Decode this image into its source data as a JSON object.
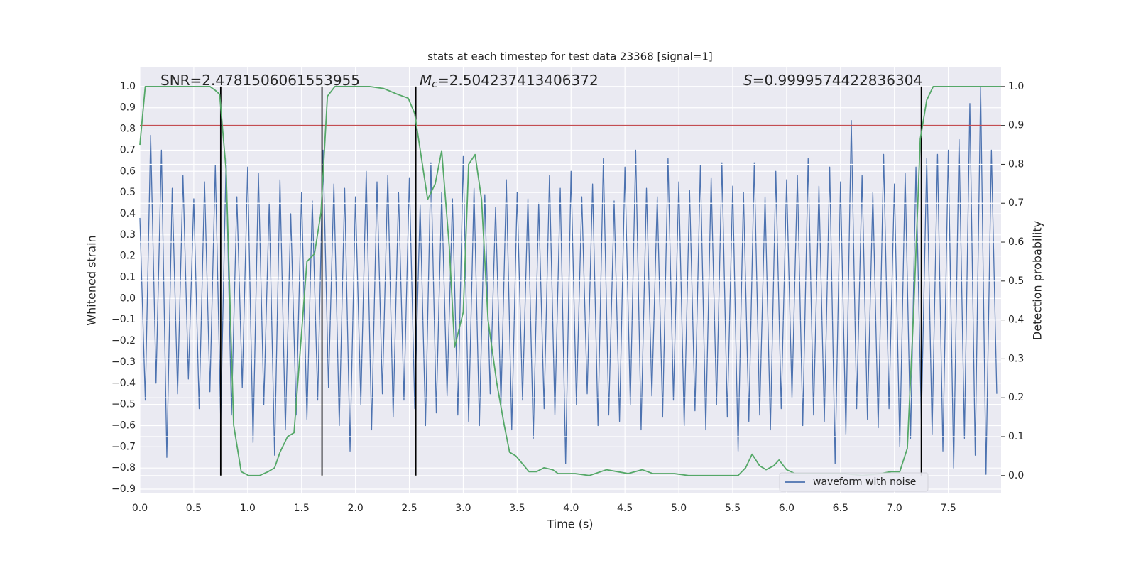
{
  "chart_data": {
    "type": "line",
    "title": "stats at each timestep for test data 23368 [signal=1]",
    "xlabel": "Time (s)",
    "ylabel": "Whitened strain",
    "y2label": "Detection probability",
    "xlim": [
      0,
      7.99
    ],
    "ylim": [
      -0.92,
      1.09
    ],
    "y2lim": [
      -0.046,
      1.049
    ],
    "xticks": [
      {
        "value": 0,
        "label": "0.0"
      },
      0.5,
      {
        "value": 1,
        "label": "1.0"
      },
      1.5,
      {
        "value": 2,
        "label": "2.0"
      },
      2.5,
      {
        "value": 3,
        "label": "3.0"
      },
      3.5,
      {
        "value": 4,
        "label": "4.0"
      },
      4.5,
      {
        "value": 5,
        "label": "5.0"
      },
      5.5,
      {
        "value": 6,
        "label": "6.0"
      },
      6.5,
      {
        "value": 7,
        "label": "7.0"
      },
      7.5
    ],
    "yticks": [
      {
        "value": -0.9,
        "label": "−0.9"
      },
      {
        "value": -0.8,
        "label": "−0.8"
      },
      {
        "value": -0.7,
        "label": "−0.7"
      },
      {
        "value": -0.6,
        "label": "−0.6"
      },
      {
        "value": -0.5,
        "label": "−0.5"
      },
      {
        "value": -0.4,
        "label": "−0.4"
      },
      {
        "value": -0.3,
        "label": "−0.3"
      },
      {
        "value": -0.2,
        "label": "−0.2"
      },
      {
        "value": -0.1,
        "label": "−0.1"
      },
      {
        "value": 0,
        "label": "0.0"
      },
      0.1,
      0.2,
      0.3,
      0.4,
      0.5,
      0.6,
      0.7,
      0.8,
      0.9,
      {
        "value": 1,
        "label": "1.0"
      }
    ],
    "y2ticks": [
      {
        "value": 0,
        "label": "0.0"
      },
      0.1,
      0.2,
      0.3,
      0.4,
      0.5,
      0.6,
      0.7,
      0.8,
      0.9,
      {
        "value": 1,
        "label": "1.0"
      }
    ],
    "grid": true,
    "legend": "lower right",
    "threshold": {
      "value": 0.9,
      "axis": "y2",
      "color": "#c44e52"
    },
    "vlines": {
      "values": [
        0.75,
        1.69,
        2.56,
        7.25
      ],
      "from": 0,
      "to": 1,
      "axis": "y2",
      "color": "#000000"
    },
    "annotations": [
      {
        "text": "SNR=2.4781506061553955"
      },
      {
        "symbol": "M",
        "subscript": "c",
        "text": "=2.504237413406372"
      },
      {
        "symbol": "S",
        "text": "=0.9999574422836304"
      }
    ],
    "series": [
      {
        "name": "waveform with noise",
        "color": "#4c72b0",
        "x": [
          0,
          0.05,
          0.1,
          0.15,
          0.2,
          0.25,
          0.3,
          0.35,
          0.4,
          0.45,
          0.5,
          0.55,
          0.6,
          0.65,
          0.7,
          0.75,
          0.8,
          0.85,
          0.9,
          0.95,
          1,
          1.05,
          1.1,
          1.15,
          1.2,
          1.25,
          1.3,
          1.35,
          1.4,
          1.45,
          1.5,
          1.55,
          1.6,
          1.65,
          1.7,
          1.75,
          1.8,
          1.85,
          1.9,
          1.95,
          2,
          2.05,
          2.1,
          2.15,
          2.2,
          2.25,
          2.3,
          2.35,
          2.4,
          2.45,
          2.5,
          2.55,
          2.6,
          2.65,
          2.7,
          2.75,
          2.8,
          2.85,
          2.9,
          2.95,
          3,
          3.05,
          3.1,
          3.15,
          3.2,
          3.25,
          3.3,
          3.35,
          3.4,
          3.45,
          3.5,
          3.55,
          3.6,
          3.65,
          3.7,
          3.75,
          3.8,
          3.85,
          3.9,
          3.95,
          4,
          4.05,
          4.1,
          4.15,
          4.2,
          4.25,
          4.3,
          4.35,
          4.4,
          4.45,
          4.5,
          4.55,
          4.6,
          4.65,
          4.7,
          4.75,
          4.8,
          4.85,
          4.9,
          4.95,
          5,
          5.05,
          5.1,
          5.15,
          5.2,
          5.25,
          5.3,
          5.35,
          5.4,
          5.45,
          5.5,
          5.55,
          5.6,
          5.65,
          5.7,
          5.75,
          5.8,
          5.85,
          5.9,
          5.95,
          6,
          6.05,
          6.1,
          6.15,
          6.2,
          6.25,
          6.3,
          6.35,
          6.4,
          6.45,
          6.5,
          6.55,
          6.6,
          6.65,
          6.7,
          6.75,
          6.8,
          6.85,
          6.9,
          6.95,
          7,
          7.05,
          7.1,
          7.15,
          7.2,
          7.25,
          7.3,
          7.35,
          7.4,
          7.45,
          7.5,
          7.55,
          7.6,
          7.65,
          7.7,
          7.75,
          7.8,
          7.85,
          7.9,
          7.95
        ],
        "values": [
          0.38,
          -0.48,
          0.77,
          -0.4,
          0.7,
          -0.75,
          0.52,
          -0.45,
          0.58,
          -0.38,
          0.47,
          -0.52,
          0.55,
          -0.44,
          0.63,
          -0.58,
          0.66,
          -0.55,
          0.48,
          -0.42,
          0.62,
          -0.68,
          0.59,
          -0.5,
          0.45,
          -0.74,
          0.56,
          -0.62,
          0.4,
          -0.55,
          0.5,
          -0.57,
          0.46,
          -0.48,
          0.7,
          -0.42,
          0.54,
          -0.6,
          0.52,
          -0.72,
          0.48,
          -0.5,
          0.6,
          -0.62,
          0.55,
          -0.45,
          0.58,
          -0.56,
          0.5,
          -0.48,
          0.57,
          -0.52,
          0.44,
          -0.6,
          0.64,
          -0.54,
          0.5,
          -0.46,
          0.47,
          -0.55,
          0.67,
          -0.58,
          0.52,
          -0.6,
          0.49,
          -0.45,
          0.43,
          -0.5,
          0.56,
          -0.62,
          0.5,
          -0.48,
          0.47,
          -0.66,
          0.45,
          -0.52,
          0.58,
          -0.55,
          0.52,
          -0.78,
          0.6,
          -0.5,
          0.48,
          -0.45,
          0.54,
          -0.6,
          0.66,
          -0.55,
          0.46,
          -0.58,
          0.62,
          -0.5,
          0.7,
          -0.62,
          0.52,
          -0.46,
          0.48,
          -0.56,
          0.66,
          -0.48,
          0.55,
          -0.6,
          0.51,
          -0.53,
          0.63,
          -0.62,
          0.57,
          -0.5,
          0.64,
          -0.56,
          0.53,
          -0.72,
          0.5,
          -0.58,
          0.64,
          -0.55,
          0.48,
          -0.62,
          0.6,
          -0.52,
          0.56,
          -0.47,
          0.58,
          -0.6,
          0.66,
          -0.55,
          0.53,
          -0.58,
          0.62,
          -0.78,
          0.55,
          -0.64,
          0.84,
          -0.52,
          0.58,
          -0.57,
          0.5,
          -0.61,
          0.68,
          -0.52,
          0.54,
          -0.7,
          0.59,
          -0.66,
          0.62,
          -0.58,
          0.66,
          -0.64,
          0.68,
          -0.72,
          0.7,
          -0.8,
          0.75,
          -0.66,
          0.92,
          -0.74,
          1.0,
          -0.83,
          0.7,
          -0.45
        ]
      },
      {
        "color": "#55a868",
        "axis": "y2",
        "x": [
          0,
          0.05,
          0.12,
          0.65,
          0.7,
          0.74,
          0.8,
          0.87,
          0.94,
          1.01,
          1.11,
          1.19,
          1.25,
          1.3,
          1.37,
          1.43,
          1.55,
          1.62,
          1.68,
          1.74,
          1.81,
          2.13,
          2.26,
          2.39,
          2.49,
          2.55,
          2.61,
          2.67,
          2.74,
          2.8,
          2.87,
          2.92,
          3.0,
          3.05,
          3.11,
          3.17,
          3.23,
          3.31,
          3.38,
          3.43,
          3.49,
          3.61,
          3.68,
          3.75,
          3.83,
          3.88,
          4.04,
          4.17,
          4.33,
          4.43,
          4.53,
          4.66,
          4.76,
          4.96,
          5.09,
          5.55,
          5.62,
          5.68,
          5.75,
          5.81,
          5.88,
          5.93,
          6.0,
          6.08,
          6.54,
          6.7,
          6.87,
          6.97,
          7.05,
          7.12,
          7.18,
          7.24,
          7.3,
          7.36,
          7.99
        ],
        "values": [
          0.85,
          1.0,
          1.0,
          1.0,
          0.99,
          0.98,
          0.785,
          0.13,
          0.01,
          0.0,
          0.0,
          0.01,
          0.02,
          0.06,
          0.1,
          0.11,
          0.55,
          0.57,
          0.675,
          0.975,
          1.0,
          1.0,
          0.995,
          0.98,
          0.97,
          0.93,
          0.82,
          0.71,
          0.75,
          0.835,
          0.59,
          0.33,
          0.42,
          0.8,
          0.825,
          0.71,
          0.4,
          0.24,
          0.13,
          0.06,
          0.05,
          0.01,
          0.01,
          0.02,
          0.015,
          0.005,
          0.005,
          0.0,
          0.015,
          0.01,
          0.005,
          0.015,
          0.005,
          0.005,
          0.0,
          0.0,
          0.02,
          0.055,
          0.025,
          0.015,
          0.025,
          0.04,
          0.015,
          0.005,
          0.005,
          0.0,
          0.005,
          0.01,
          0.01,
          0.07,
          0.43,
          0.865,
          0.965,
          1.0,
          1.0
        ]
      }
    ]
  }
}
